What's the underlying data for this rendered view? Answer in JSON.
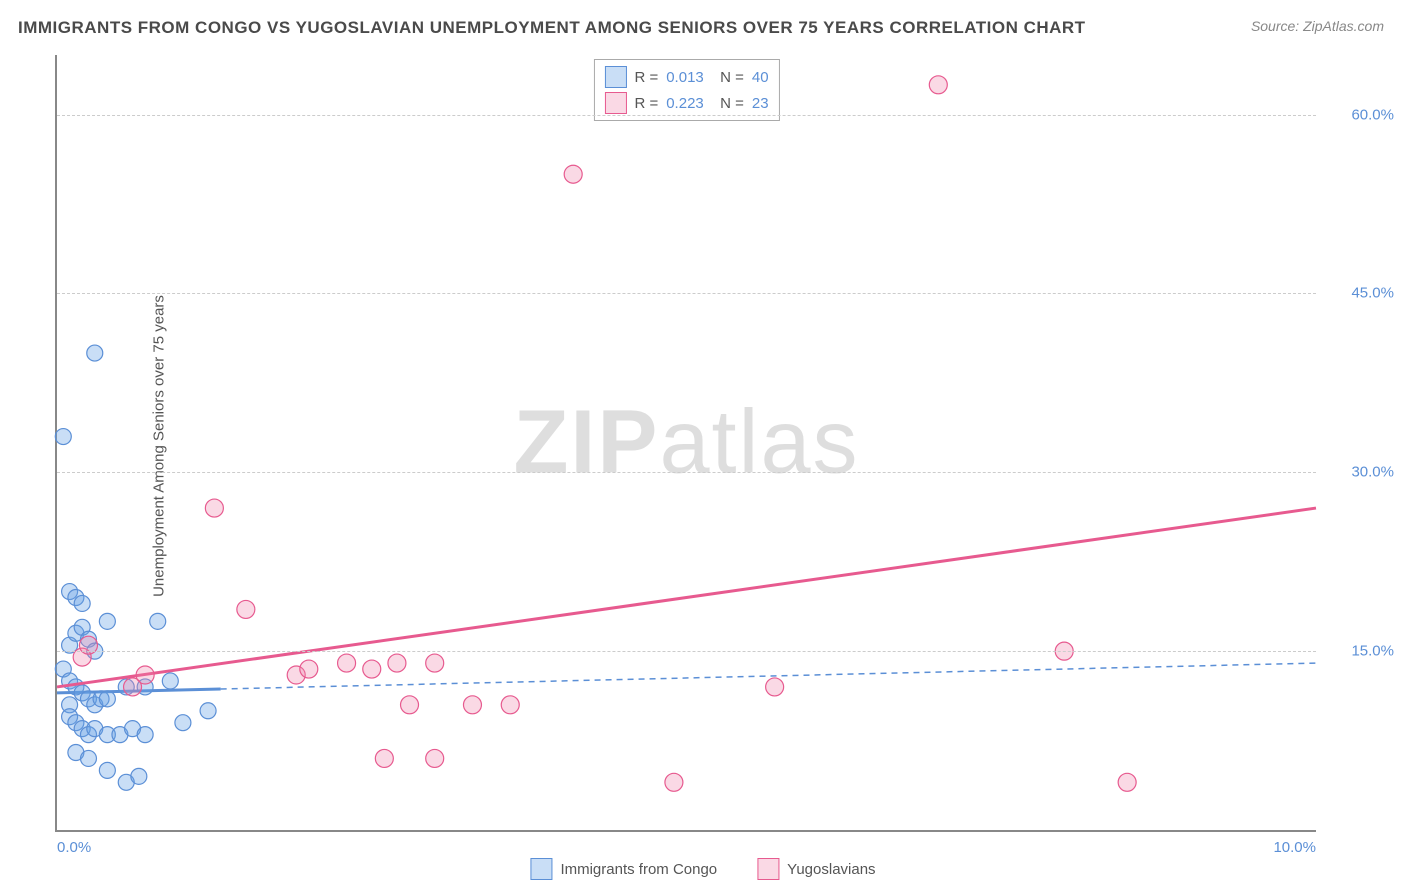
{
  "title": "IMMIGRANTS FROM CONGO VS YUGOSLAVIAN UNEMPLOYMENT AMONG SENIORS OVER 75 YEARS CORRELATION CHART",
  "source": "Source: ZipAtlas.com",
  "y_axis_label": "Unemployment Among Seniors over 75 years",
  "watermark_zip": "ZIP",
  "watermark_atlas": "atlas",
  "chart": {
    "type": "scatter",
    "background_color": "#ffffff",
    "grid_color": "#cccccc",
    "axis_color": "#888888",
    "tick_label_color": "#5b8fd6",
    "xlim": [
      0,
      10
    ],
    "ylim": [
      0,
      65
    ],
    "y_ticks": [
      15,
      30,
      45,
      60
    ],
    "y_tick_labels": [
      "15.0%",
      "30.0%",
      "45.0%",
      "60.0%"
    ],
    "x_ticks": [
      0,
      10
    ],
    "x_tick_labels": [
      "0.0%",
      "10.0%"
    ],
    "series": [
      {
        "name": "Immigrants from Congo",
        "color_fill": "rgba(100,160,230,0.35)",
        "color_stroke": "#5b8fd6",
        "marker_radius": 8,
        "R": "0.013",
        "N": "40",
        "points": [
          [
            0.05,
            33.0
          ],
          [
            0.3,
            40.0
          ],
          [
            0.1,
            20.0
          ],
          [
            0.15,
            19.5
          ],
          [
            0.2,
            19.0
          ],
          [
            0.4,
            17.5
          ],
          [
            0.8,
            17.5
          ],
          [
            0.1,
            15.5
          ],
          [
            0.15,
            16.5
          ],
          [
            0.2,
            17.0
          ],
          [
            0.25,
            16.0
          ],
          [
            0.3,
            15.0
          ],
          [
            0.05,
            13.5
          ],
          [
            0.1,
            12.5
          ],
          [
            0.15,
            12.0
          ],
          [
            0.2,
            11.5
          ],
          [
            0.25,
            11.0
          ],
          [
            0.1,
            10.5
          ],
          [
            0.3,
            10.5
          ],
          [
            0.35,
            11.0
          ],
          [
            0.4,
            11.0
          ],
          [
            0.55,
            12.0
          ],
          [
            0.7,
            12.0
          ],
          [
            0.9,
            12.5
          ],
          [
            0.1,
            9.5
          ],
          [
            0.15,
            9.0
          ],
          [
            0.2,
            8.5
          ],
          [
            0.25,
            8.0
          ],
          [
            0.3,
            8.5
          ],
          [
            0.4,
            8.0
          ],
          [
            0.5,
            8.0
          ],
          [
            0.6,
            8.5
          ],
          [
            0.7,
            8.0
          ],
          [
            1.0,
            9.0
          ],
          [
            1.2,
            10.0
          ],
          [
            0.15,
            6.5
          ],
          [
            0.25,
            6.0
          ],
          [
            0.4,
            5.0
          ],
          [
            0.55,
            4.0
          ],
          [
            0.65,
            4.5
          ]
        ],
        "trend": {
          "y_at_x0": 11.5,
          "y_at_xmax": 14.0,
          "solid_until_x": 1.3,
          "stroke_width": 3
        }
      },
      {
        "name": "Yugoslavians",
        "color_fill": "rgba(240,130,170,0.30)",
        "color_stroke": "#e75a8f",
        "marker_radius": 9,
        "R": "0.223",
        "N": "23",
        "points": [
          [
            7.0,
            62.5
          ],
          [
            4.1,
            55.0
          ],
          [
            1.25,
            27.0
          ],
          [
            1.5,
            18.5
          ],
          [
            0.2,
            14.5
          ],
          [
            0.25,
            15.5
          ],
          [
            0.7,
            13.0
          ],
          [
            0.6,
            12.0
          ],
          [
            1.9,
            13.0
          ],
          [
            2.0,
            13.5
          ],
          [
            2.3,
            14.0
          ],
          [
            2.5,
            13.5
          ],
          [
            2.7,
            14.0
          ],
          [
            3.0,
            14.0
          ],
          [
            5.7,
            12.0
          ],
          [
            2.8,
            10.5
          ],
          [
            3.3,
            10.5
          ],
          [
            3.6,
            10.5
          ],
          [
            2.6,
            6.0
          ],
          [
            3.0,
            6.0
          ],
          [
            4.9,
            4.0
          ],
          [
            8.5,
            4.0
          ],
          [
            8.0,
            15.0
          ]
        ],
        "trend": {
          "y_at_x0": 12.0,
          "y_at_xmax": 27.0,
          "solid_until_x": 10,
          "stroke_width": 3
        }
      }
    ]
  },
  "legend_bottom": [
    {
      "label": "Immigrants from Congo",
      "fill": "rgba(100,160,230,0.35)",
      "stroke": "#5b8fd6"
    },
    {
      "label": "Yugoslavians",
      "fill": "rgba(240,130,170,0.30)",
      "stroke": "#e75a8f"
    }
  ]
}
